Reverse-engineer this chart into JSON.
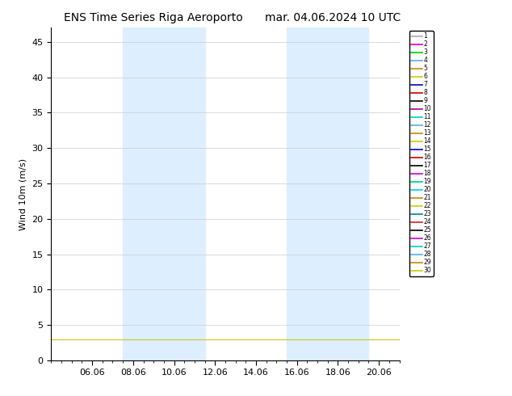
{
  "title_left": "ENS Time Series Riga Aeroporto",
  "title_right": "mar. 04.06.2024 10 UTC",
  "ylabel": "Wind 10m (m/s)",
  "ylim": [
    0,
    47
  ],
  "yticks": [
    0,
    5,
    10,
    15,
    20,
    25,
    30,
    35,
    40,
    45
  ],
  "xtick_labels": [
    "06.06",
    "08.06",
    "10.06",
    "12.06",
    "14.06",
    "16.06",
    "18.06",
    "20.06"
  ],
  "xtick_pos": [
    2,
    4,
    6,
    8,
    10,
    12,
    14,
    16
  ],
  "xlim": [
    0,
    17
  ],
  "shaded_bands": [
    {
      "start": 3.5,
      "end": 5.5
    },
    {
      "start": 5.5,
      "end": 7.5
    },
    {
      "start": 11.5,
      "end": 13.5
    },
    {
      "start": 13.5,
      "end": 15.5
    }
  ],
  "n_members": 30,
  "member_colors": [
    "#aaaaaa",
    "#cc00cc",
    "#00cc00",
    "#55aaff",
    "#cc8800",
    "#cccc00",
    "#0000cc",
    "#cc0000",
    "#000000",
    "#aa00aa",
    "#00cccc",
    "#55aaff",
    "#cc8800",
    "#cccc00",
    "#0000cc",
    "#cc0000",
    "#000000",
    "#cc00cc",
    "#00cc88",
    "#00ccff",
    "#cc8800",
    "#cccc00",
    "#008888",
    "#cc2222",
    "#000000",
    "#cc00cc",
    "#00cccc",
    "#55aaff",
    "#cc8800",
    "#cccc00"
  ],
  "background_color": "#ffffff",
  "shading_color": "#ddeeff",
  "title_fontsize": 10,
  "axis_fontsize": 8,
  "tick_fontsize": 8,
  "legend_fontsize": 5.5
}
